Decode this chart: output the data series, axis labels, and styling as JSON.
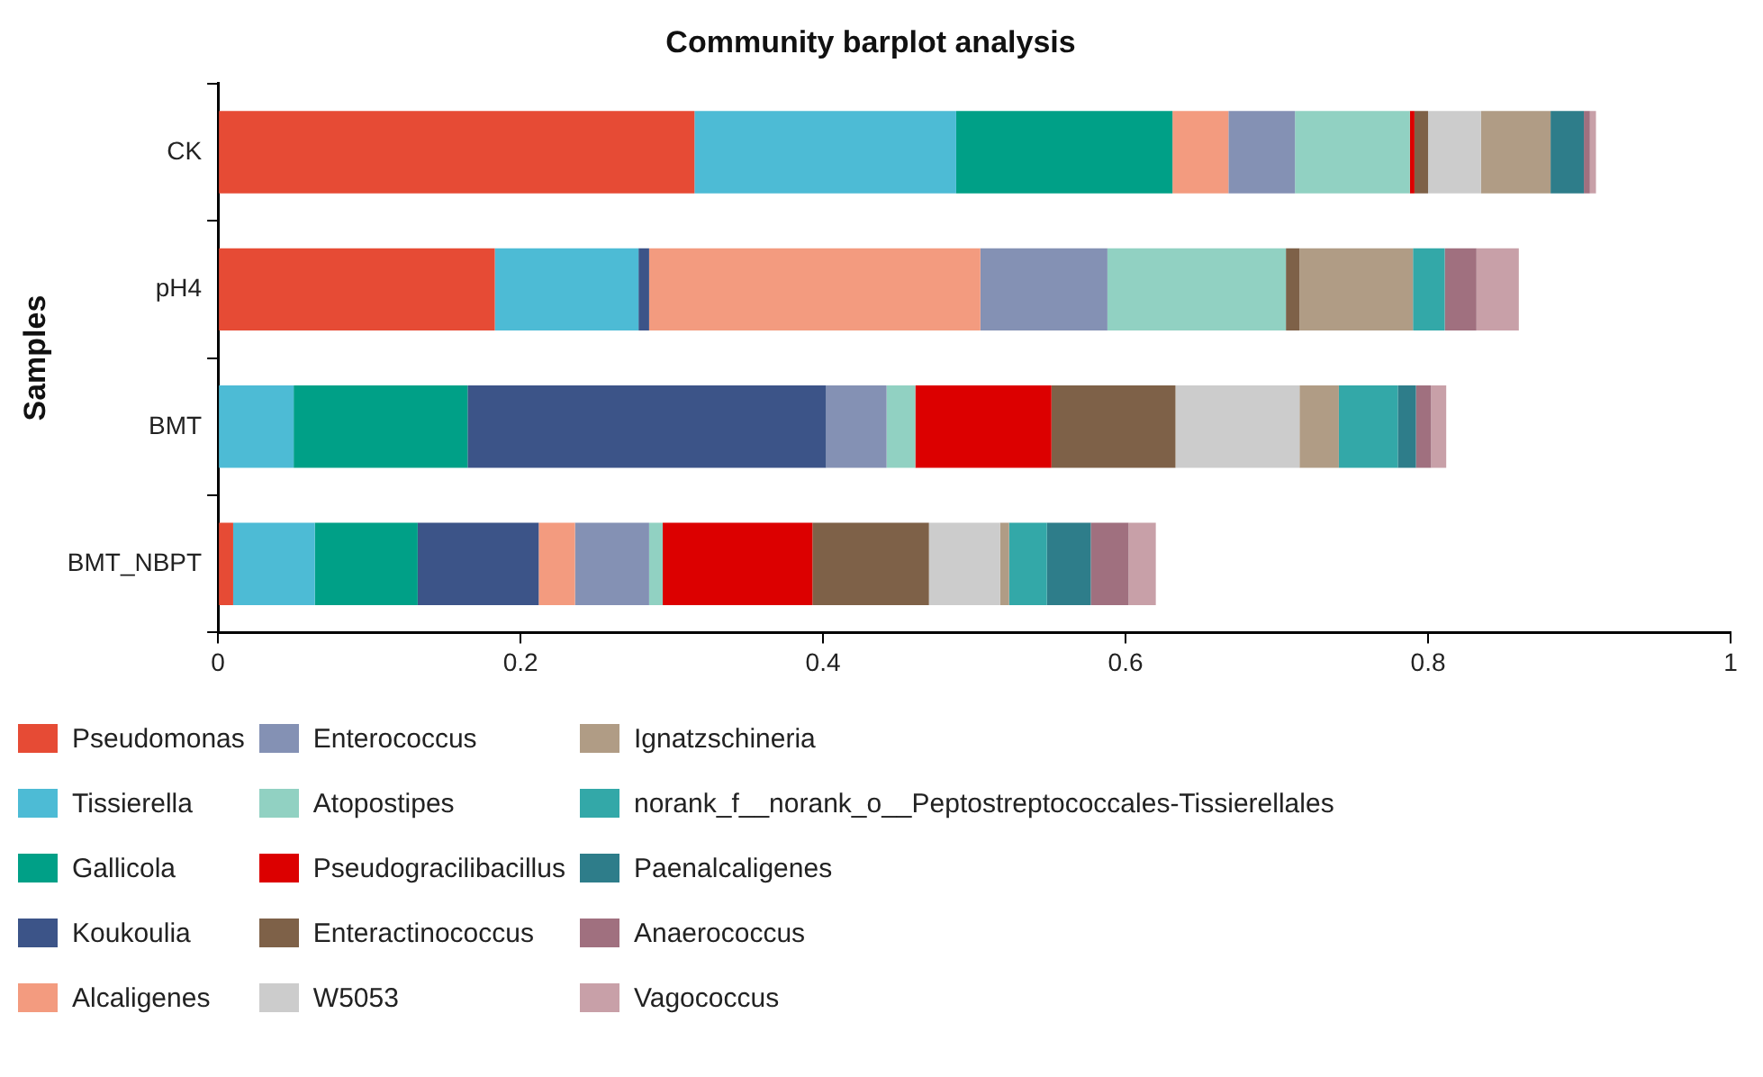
{
  "chart_data": {
    "type": "bar",
    "title": "Community barplot analysis",
    "ylabel": "Samples",
    "orientation": "horizontal",
    "stacked": true,
    "categories": [
      "CK",
      "pH4",
      "BMT",
      "BMT_NBPT"
    ],
    "xlim": [
      0,
      1
    ],
    "xticks": [
      0,
      0.2,
      0.4,
      0.6,
      0.8,
      1
    ],
    "grid": false,
    "legend": "bottom",
    "series": [
      {
        "name": "Pseudomonas",
        "color": "#e64b35",
        "values": [
          0.315,
          0.183,
          0,
          0.01
        ]
      },
      {
        "name": "Tissierella",
        "color": "#4dbbd5",
        "values": [
          0.173,
          0.095,
          0.05,
          0.054
        ]
      },
      {
        "name": "Gallicola",
        "color": "#00a087",
        "values": [
          0.143,
          0,
          0.115,
          0.068
        ]
      },
      {
        "name": "Koukoulia",
        "color": "#3c5488",
        "values": [
          0,
          0.007,
          0.237,
          0.08
        ]
      },
      {
        "name": "Alcaligenes",
        "color": "#f39b7f",
        "values": [
          0.037,
          0.219,
          0,
          0.024
        ]
      },
      {
        "name": "Enterococcus",
        "color": "#8491b4",
        "values": [
          0.044,
          0.084,
          0.04,
          0.049
        ]
      },
      {
        "name": "Atopostipes",
        "color": "#91d1c2",
        "values": [
          0.076,
          0.118,
          0.019,
          0.009
        ]
      },
      {
        "name": "Pseudogracilibacillus",
        "color": "#dc0000",
        "values": [
          0.003,
          0,
          0.09,
          0.099
        ]
      },
      {
        "name": "Enteractinococcus",
        "color": "#7e6148",
        "values": [
          0.009,
          0.009,
          0.082,
          0.077
        ]
      },
      {
        "name": "W5053",
        "color": "#cccccc",
        "values": [
          0.035,
          0,
          0.082,
          0.047
        ]
      },
      {
        "name": "Ignatzschineria",
        "color": "#b09c85",
        "values": [
          0.046,
          0.075,
          0.026,
          0.006
        ]
      },
      {
        "name": "norank_f__norank_o__Peptostreptococcales-Tissierellales",
        "color": "#33a8a8",
        "values": [
          0,
          0.021,
          0.039,
          0.025
        ]
      },
      {
        "name": "Paenalcaligenes",
        "color": "#2e7d8a",
        "values": [
          0.022,
          0,
          0.012,
          0.029
        ]
      },
      {
        "name": "Anaerococcus",
        "color": "#a0707f",
        "values": [
          0.004,
          0.021,
          0.01,
          0.025
        ]
      },
      {
        "name": "Vagococcus",
        "color": "#c8a0a8",
        "values": [
          0.004,
          0.028,
          0.01,
          0.018
        ]
      }
    ]
  }
}
